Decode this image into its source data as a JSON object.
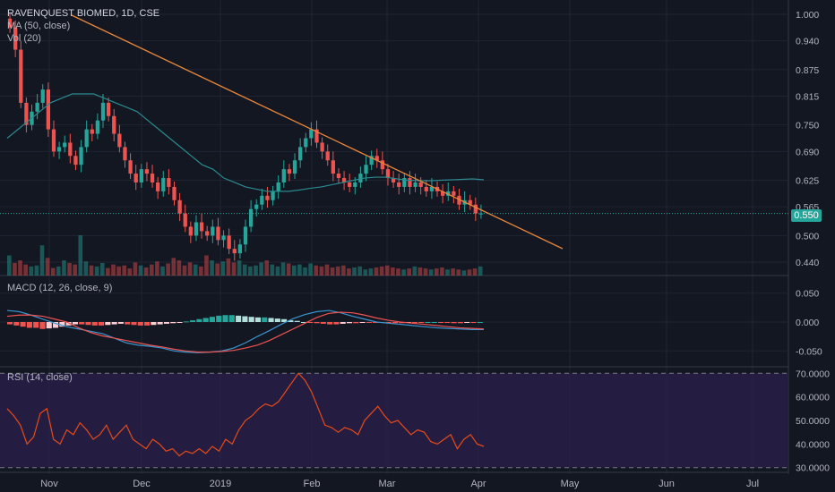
{
  "header": {
    "title": "RAVENQUEST BIOMED, 1D, CSE",
    "ma_label": "MA (50, close)",
    "vol_label": "Vol (20)",
    "macd_label": "MACD (12, 26, close, 9)",
    "rsi_label": "RSI (14, close)"
  },
  "last_price": "0.550",
  "colors": {
    "background": "#131722",
    "up": "#26a69a",
    "down": "#ef5350",
    "ma": "#2b8a8f",
    "trendline": "#e8873a",
    "macd_line": "#3a95d0",
    "signal_line": "#ef5350",
    "rsi_line": "#e64a19",
    "rsi_band": "#2a1f4a",
    "grid": "#1f2433",
    "price_line": "#26a69a",
    "axis_text": "#b2b5be"
  },
  "chart_data": {
    "type": "candlestick",
    "x_tick_labels": [
      "Nov",
      "Dec",
      "2019",
      "Feb",
      "Mar",
      "Apr",
      "May",
      "Jun",
      "Jul"
    ],
    "price_axis": {
      "ticks": [
        "1.000",
        "0.940",
        "0.875",
        "0.815",
        "0.750",
        "0.690",
        "0.625",
        "0.565",
        "0.500",
        "0.440"
      ],
      "range": [
        0.43,
        1.01
      ]
    },
    "price_closes": [
      0.97,
      0.92,
      0.8,
      0.75,
      0.78,
      0.8,
      0.83,
      0.74,
      0.69,
      0.7,
      0.71,
      0.68,
      0.66,
      0.7,
      0.74,
      0.73,
      0.76,
      0.8,
      0.77,
      0.73,
      0.7,
      0.67,
      0.64,
      0.62,
      0.65,
      0.64,
      0.62,
      0.6,
      0.63,
      0.61,
      0.58,
      0.55,
      0.52,
      0.5,
      0.53,
      0.51,
      0.5,
      0.52,
      0.49,
      0.5,
      0.47,
      0.46,
      0.48,
      0.52,
      0.56,
      0.57,
      0.59,
      0.58,
      0.6,
      0.62,
      0.65,
      0.64,
      0.67,
      0.7,
      0.72,
      0.74,
      0.71,
      0.69,
      0.67,
      0.64,
      0.63,
      0.62,
      0.61,
      0.62,
      0.64,
      0.66,
      0.68,
      0.67,
      0.65,
      0.63,
      0.62,
      0.61,
      0.63,
      0.61,
      0.62,
      0.61,
      0.6,
      0.61,
      0.6,
      0.59,
      0.6,
      0.59,
      0.57,
      0.58,
      0.57,
      0.55,
      0.55
    ],
    "ma_50": [
      0.72,
      0.74,
      0.76,
      0.78,
      0.8,
      0.81,
      0.82,
      0.82,
      0.82,
      0.81,
      0.8,
      0.79,
      0.78,
      0.76,
      0.74,
      0.72,
      0.7,
      0.68,
      0.66,
      0.65,
      0.63,
      0.62,
      0.61,
      0.605,
      0.6,
      0.6,
      0.6,
      0.603,
      0.607,
      0.61,
      0.615,
      0.62,
      0.625,
      0.63,
      0.632,
      0.632,
      0.628,
      0.625,
      0.624,
      0.624,
      0.625,
      0.626,
      0.627,
      0.628,
      0.626
    ],
    "volume": [
      40,
      25,
      30,
      22,
      18,
      20,
      60,
      35,
      15,
      18,
      30,
      25,
      22,
      80,
      28,
      20,
      18,
      25,
      15,
      22,
      18,
      20,
      14,
      26,
      20,
      16,
      22,
      28,
      18,
      24,
      35,
      30,
      20,
      26,
      22,
      18,
      40,
      30,
      24,
      28,
      34,
      26,
      30,
      22,
      18,
      20,
      26,
      30,
      22,
      18,
      26,
      24,
      20,
      22,
      16,
      24,
      20,
      18,
      22,
      16,
      18,
      20,
      14,
      16,
      18,
      12,
      14,
      16,
      18,
      20,
      16,
      14,
      12,
      14,
      18,
      16,
      14,
      12,
      14,
      16,
      12,
      14,
      12,
      10,
      12,
      14,
      18
    ],
    "macd_axis": {
      "ticks": [
        "0.050",
        "0.000",
        "-0.050"
      ],
      "range": [
        -0.065,
        0.065
      ]
    },
    "macd_line": [
      0.02,
      0.018,
      0.012,
      0.005,
      -0.002,
      -0.008,
      -0.012,
      -0.016,
      -0.02,
      -0.028,
      -0.036,
      -0.04,
      -0.042,
      -0.045,
      -0.05,
      -0.052,
      -0.053,
      -0.052,
      -0.05,
      -0.045,
      -0.036,
      -0.025,
      -0.015,
      -0.004,
      0.006,
      0.013,
      0.018,
      0.02,
      0.016,
      0.01,
      0.005,
      0.0,
      -0.002,
      -0.004,
      -0.006,
      -0.008,
      -0.01,
      -0.011,
      -0.012,
      -0.013,
      -0.013
    ],
    "macd_signal": [
      0.01,
      0.012,
      0.012,
      0.01,
      0.005,
      0.0,
      -0.01,
      -0.018,
      -0.024,
      -0.028,
      -0.032,
      -0.036,
      -0.04,
      -0.043,
      -0.047,
      -0.05,
      -0.052,
      -0.052,
      -0.051,
      -0.049,
      -0.045,
      -0.04,
      -0.032,
      -0.022,
      -0.012,
      -0.002,
      0.008,
      0.015,
      0.017,
      0.016,
      0.012,
      0.007,
      0.003,
      0.0,
      -0.002,
      -0.004,
      -0.006,
      -0.008,
      -0.01,
      -0.011,
      -0.012
    ],
    "macd_histogram": [
      -0.004,
      -0.006,
      -0.008,
      -0.01,
      -0.01,
      -0.012,
      -0.011,
      -0.01,
      -0.008,
      -0.006,
      -0.004,
      -0.004,
      -0.005,
      -0.006,
      -0.006,
      -0.005,
      -0.004,
      -0.003,
      -0.004,
      -0.005,
      -0.006,
      -0.006,
      -0.005,
      -0.004,
      -0.003,
      -0.002,
      -0.001,
      0.001,
      0.003,
      0.005,
      0.007,
      0.009,
      0.011,
      0.012,
      0.012,
      0.011,
      0.01,
      0.009,
      0.008,
      0.008,
      0.007,
      0.006,
      0.005,
      0.003,
      0.002,
      0.0,
      -0.001,
      -0.002,
      -0.003,
      -0.004,
      -0.004,
      -0.003,
      -0.002,
      -0.002,
      -0.001,
      -0.001,
      -0.001,
      -0.001,
      -0.001,
      -0.002,
      -0.002,
      -0.001,
      -0.001,
      -0.001,
      0.0,
      0.0,
      -0.001,
      -0.001,
      -0.002,
      -0.002,
      -0.001,
      -0.001,
      0.0
    ],
    "rsi_axis": {
      "ticks": [
        "70.0000",
        "60.0000",
        "50.0000",
        "40.0000",
        "30.0000"
      ],
      "range": [
        28,
        72
      ]
    },
    "rsi": [
      55,
      52,
      48,
      40,
      43,
      53,
      55,
      42,
      40,
      46,
      44,
      49,
      46,
      42,
      44,
      48,
      42,
      45,
      48,
      42,
      40,
      38,
      42,
      40,
      37,
      38,
      35,
      37,
      36,
      38,
      36,
      39,
      37,
      42,
      40,
      46,
      50,
      52,
      55,
      57,
      56,
      58,
      62,
      66,
      70,
      67,
      62,
      55,
      48,
      47,
      45,
      47,
      46,
      44,
      50,
      53,
      56,
      52,
      49,
      50,
      47,
      44,
      46,
      45,
      41,
      40,
      42,
      44,
      38,
      42,
      44,
      40,
      39
    ]
  }
}
